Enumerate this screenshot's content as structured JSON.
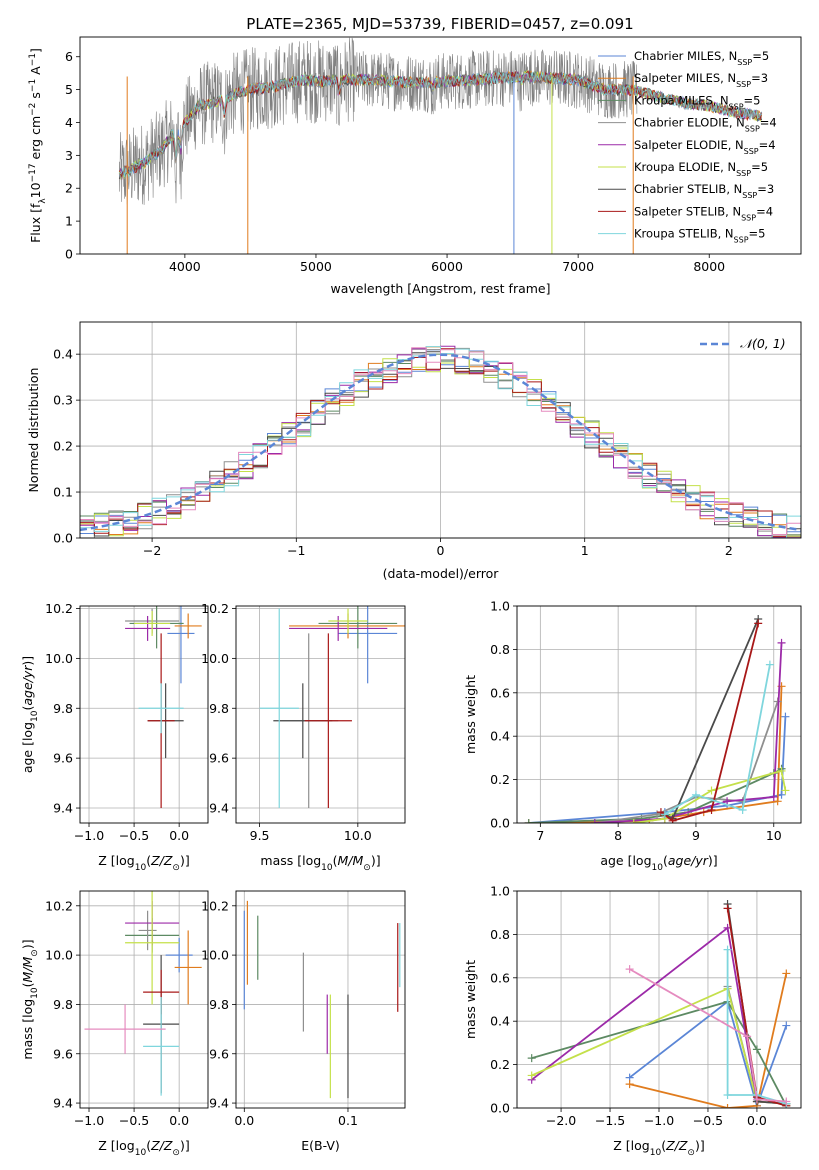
{
  "figure": {
    "title": "PLATE=2365, MJD=53739, FIBERID=0457, z=0.091"
  },
  "series_styles": [
    {
      "name": "Chabrier MILES",
      "nssp": "5",
      "color": "#5b86d6"
    },
    {
      "name": "Salpeter MILES",
      "nssp": "3",
      "color": "#e07c1e"
    },
    {
      "name": "Kroupa MILES",
      "nssp": "5",
      "color": "#5d8a63"
    },
    {
      "name": "Chabrier ELODIE",
      "nssp": "4",
      "color": "#8f8f8f"
    },
    {
      "name": "Salpeter ELODIE",
      "nssp": "4",
      "color": "#9c2aa8"
    },
    {
      "name": "Kroupa ELODIE",
      "nssp": "5",
      "color": "#c4e04a"
    },
    {
      "name": "Chabrier STELIB",
      "nssp": "3",
      "color": "#4a4a4a"
    },
    {
      "name": "Salpeter STELIB",
      "nssp": "4",
      "color": "#a81818"
    },
    {
      "name": "Kroupa STELIB",
      "nssp": "5",
      "color": "#7fd6dd"
    }
  ],
  "chart_data": [
    {
      "id": "spectrum",
      "type": "line",
      "xlabel": "wavelength [Angstrom, rest frame]",
      "ylabel": "Flux [f_λ 10^-17 erg cm^-2 s^-1 A^-1]",
      "xlim": [
        3200,
        8700
      ],
      "ylim": [
        0,
        6.6
      ],
      "xticks": [
        "4000",
        "5000",
        "6000",
        "7000",
        "8000"
      ],
      "yticks": [
        "0",
        "1",
        "2",
        "3",
        "4",
        "5",
        "6"
      ],
      "continuum": {
        "x": [
          3500,
          3600,
          3700,
          3800,
          3900,
          4000,
          4100,
          4200,
          4300,
          4400,
          4500,
          4600,
          4700,
          4800,
          4900,
          5000,
          5200,
          5400,
          5600,
          5800,
          6000,
          6200,
          6400,
          6600,
          6800,
          7000,
          7200,
          7400,
          7600,
          7800,
          8000,
          8200,
          8400
        ],
        "y": [
          2.4,
          2.6,
          2.8,
          3.1,
          3.6,
          4.0,
          4.5,
          4.6,
          4.7,
          4.9,
          5.0,
          5.05,
          5.1,
          5.2,
          5.3,
          5.25,
          5.3,
          5.3,
          5.25,
          5.2,
          5.25,
          5.3,
          5.35,
          5.4,
          5.35,
          5.3,
          5.0,
          5.0,
          4.8,
          4.6,
          4.5,
          4.3,
          4.2
        ]
      },
      "dips": [
        [
          3933,
          1.2
        ],
        [
          3968,
          1.0
        ],
        [
          4300,
          0.6
        ],
        [
          5175,
          0.5
        ],
        [
          5890,
          0.3
        ],
        [
          6563,
          0.2
        ]
      ],
      "spikes": [
        3560,
        4480,
        6510,
        6800,
        7420
      ]
    },
    {
      "id": "residuals",
      "type": "area",
      "xlabel": "(data-model)/error",
      "ylabel": "Normed distribution",
      "xlim": [
        -2.5,
        2.5
      ],
      "ylim": [
        0,
        0.47
      ],
      "xticks": [
        "−2",
        "−1",
        "0",
        "1",
        "2"
      ],
      "yticks": [
        "0.0",
        "0.1",
        "0.2",
        "0.3",
        "0.4"
      ],
      "legend": "𝒩(0, 1)",
      "bin_width": 0.1
    },
    {
      "id": "age_vs_Z",
      "type": "scatter",
      "xlabel": "Z [log10(Z/Z⊙)]",
      "ylabel": "age  [log10(age/yr)]",
      "xlim": [
        -1.1,
        0.32
      ],
      "ylim": [
        9.34,
        10.21
      ],
      "xticks": [
        "−1.0",
        "−0.5",
        "0.0"
      ],
      "yticks": [
        "9.4",
        "9.6",
        "9.8",
        "10.0",
        "10.2"
      ],
      "points": [
        {
          "x": 0.02,
          "y": 10.1,
          "xerr": 0.15,
          "yerr": 0.2
        },
        {
          "x": 0.1,
          "y": 10.13,
          "xerr": 0.15,
          "yerr": 0.05
        },
        {
          "x": -0.25,
          "y": 10.14,
          "xerr": 0.3,
          "yerr": 0.1
        },
        {
          "x": -0.3,
          "y": 10.15,
          "xerr": 0.3,
          "yerr": 0.05
        },
        {
          "x": -0.35,
          "y": 10.12,
          "xerr": 0.25,
          "yerr": 0.05
        },
        {
          "x": -0.3,
          "y": 10.14,
          "xerr": 0.2,
          "yerr": 0.05
        },
        {
          "x": -0.15,
          "y": 9.75,
          "xerr": 0.2,
          "yerr": 0.15
        },
        {
          "x": -0.2,
          "y": 9.75,
          "xerr": 0.15,
          "yerr": 0.35
        },
        {
          "x": -0.2,
          "y": 9.8,
          "xerr": 0.25,
          "yerr": 0.1
        }
      ]
    },
    {
      "id": "age_vs_mass",
      "type": "scatter",
      "xlabel": "mass [log10(M/M⊙)]",
      "ylabel": "",
      "xlim": [
        9.38,
        10.24
      ],
      "ylim": [
        9.34,
        10.21
      ],
      "xticks": [
        "9.5",
        "10.0"
      ],
      "yticks": [
        "9.4",
        "9.6",
        "9.8",
        "10.0",
        "10.2"
      ],
      "points": [
        {
          "x": 10.05,
          "y": 10.1,
          "xerr": 0.15,
          "yerr": 0.2
        },
        {
          "x": 9.95,
          "y": 10.13,
          "xerr": 0.3,
          "yerr": 0.05
        },
        {
          "x": 10.0,
          "y": 10.14,
          "xerr": 0.2,
          "yerr": 0.1
        },
        {
          "x": 9.75,
          "y": 9.75,
          "xerr": 0.15,
          "yerr": 0.35
        },
        {
          "x": 9.9,
          "y": 10.12,
          "xerr": 0.25,
          "yerr": 0.05
        },
        {
          "x": 9.95,
          "y": 10.15,
          "xerr": 0.1,
          "yerr": 0.05
        },
        {
          "x": 9.72,
          "y": 9.75,
          "xerr": 0.15,
          "yerr": 0.15
        },
        {
          "x": 9.85,
          "y": 9.75,
          "xerr": 0.12,
          "yerr": 0.35
        },
        {
          "x": 9.6,
          "y": 9.8,
          "xerr": 0.1,
          "yerr": 0.4
        }
      ]
    },
    {
      "id": "mass_weight_vs_age",
      "type": "line",
      "xlabel": "age  [log10(age/yr)]",
      "ylabel": "mass weight",
      "xlim": [
        6.7,
        10.35
      ],
      "ylim": [
        0,
        1.0
      ],
      "xticks": [
        "7",
        "8",
        "9",
        "10"
      ],
      "yticks": [
        "0.0",
        "0.2",
        "0.4",
        "0.6",
        "0.8",
        "1.0"
      ],
      "series": [
        {
          "x": [
            6.85,
            8.6,
            9.4,
            10.1,
            10.15
          ],
          "y": [
            0.0,
            0.05,
            0.08,
            0.13,
            0.49
          ]
        },
        {
          "x": [
            6.85,
            8.4,
            9.1,
            10.05,
            10.1
          ],
          "y": [
            0.0,
            0.01,
            0.05,
            0.1,
            0.63
          ]
        },
        {
          "x": [
            6.85,
            8.3,
            8.9,
            10.0,
            10.1
          ],
          "y": [
            0.0,
            0.02,
            0.05,
            0.23,
            0.25
          ]
        },
        {
          "x": [
            7.7,
            8.5,
            9.0,
            9.6,
            10.05
          ],
          "y": [
            0.0,
            0.04,
            0.12,
            0.1,
            0.56
          ]
        },
        {
          "x": [
            7.7,
            8.6,
            9.4,
            10.0,
            10.1
          ],
          "y": [
            0.0,
            0.02,
            0.1,
            0.12,
            0.83
          ]
        },
        {
          "x": [
            8.2,
            8.6,
            9.2,
            10.1,
            10.15
          ],
          "y": [
            0.0,
            0.02,
            0.15,
            0.24,
            0.15
          ]
        },
        {
          "x": [
            8.6,
            8.7,
            9.8
          ],
          "y": [
            0.04,
            0.02,
            0.94
          ]
        },
        {
          "x": [
            8.55,
            8.7,
            9.2,
            9.8
          ],
          "y": [
            0.05,
            0.01,
            0.06,
            0.92
          ]
        },
        {
          "x": [
            8.6,
            9.0,
            9.6,
            9.95
          ],
          "y": [
            0.04,
            0.13,
            0.06,
            0.73
          ]
        }
      ]
    },
    {
      "id": "mass_vs_Z",
      "type": "scatter",
      "xlabel": "Z [log10(Z/Z⊙)]",
      "ylabel": "mass [log10(M/M⊙)]",
      "xlim": [
        -1.1,
        0.32
      ],
      "ylim": [
        9.38,
        10.26
      ],
      "xticks": [
        "−1.0",
        "−0.5",
        "0.0"
      ],
      "yticks": [
        "9.4",
        "9.6",
        "9.8",
        "10.0",
        "10.2"
      ],
      "points": [
        {
          "x": 0.0,
          "y": 10.0,
          "xerr": 0.15,
          "yerr": 0.07
        },
        {
          "x": 0.1,
          "y": 9.95,
          "xerr": 0.15,
          "yerr": 0.15
        },
        {
          "x": -0.3,
          "y": 10.08,
          "xerr": 0.3,
          "yerr": 0.07
        },
        {
          "x": -0.35,
          "y": 10.1,
          "xerr": 0.1,
          "yerr": 0.08
        },
        {
          "x": -0.3,
          "y": 10.13,
          "xerr": 0.3,
          "yerr": 0.09
        },
        {
          "x": -0.3,
          "y": 10.05,
          "xerr": 0.3,
          "yerr": 0.25
        },
        {
          "x": -0.2,
          "y": 9.72,
          "xerr": 0.2,
          "yerr": 0.28
        },
        {
          "x": -0.2,
          "y": 9.85,
          "xerr": 0.2,
          "yerr": 0.09
        },
        {
          "x": -0.2,
          "y": 9.63,
          "xerr": 0.2,
          "yerr": 0.2
        },
        {
          "x": -0.6,
          "y": 9.7,
          "xerr": 0.45,
          "yerr": 0.1
        }
      ]
    },
    {
      "id": "mass_vs_ebv",
      "type": "scatter",
      "xlabel": "E(B-V)",
      "ylabel": "",
      "xlim": [
        -0.008,
        0.155
      ],
      "ylim": [
        9.38,
        10.26
      ],
      "xticks": [
        "0.0",
        "0.1"
      ],
      "yticks": [
        "9.4",
        "9.6",
        "9.8",
        "10.0",
        "10.2"
      ],
      "points": [
        {
          "x": 0.0,
          "y": 9.98,
          "yerr": 0.2
        },
        {
          "x": 0.003,
          "y": 10.05,
          "yerr": 0.17
        },
        {
          "x": 0.013,
          "y": 10.03,
          "yerr": 0.13
        },
        {
          "x": 0.057,
          "y": 9.85,
          "yerr": 0.16
        },
        {
          "x": 0.08,
          "y": 9.72,
          "yerr": 0.12
        },
        {
          "x": 0.083,
          "y": 9.63,
          "yerr": 0.21
        },
        {
          "x": 0.1,
          "y": 9.63,
          "yerr": 0.21
        },
        {
          "x": 0.148,
          "y": 9.95,
          "yerr": 0.18
        },
        {
          "x": 0.15,
          "y": 10.0,
          "yerr": 0.13
        }
      ]
    },
    {
      "id": "mass_weight_vs_Z",
      "type": "line",
      "xlabel": "Z [log10(Z/Z⊙)]",
      "ylabel": "mass weight",
      "xlim": [
        -2.45,
        0.45
      ],
      "ylim": [
        0,
        1.0
      ],
      "xticks": [
        "−2.0",
        "−1.5",
        "−1.0",
        "−0.5",
        "0.0"
      ],
      "yticks": [
        "0.0",
        "0.2",
        "0.4",
        "0.6",
        "0.8",
        "1.0"
      ],
      "series": [
        {
          "x": [
            -1.3,
            -0.3,
            0.0,
            0.3
          ],
          "y": [
            0.14,
            0.49,
            0.01,
            0.38
          ]
        },
        {
          "x": [
            -1.3,
            -0.3,
            0.0,
            0.3
          ],
          "y": [
            0.11,
            0.0,
            0.01,
            0.62
          ]
        },
        {
          "x": [
            -2.3,
            -0.3,
            0.0,
            0.3
          ],
          "y": [
            0.23,
            0.49,
            0.27,
            0.01
          ]
        },
        {
          "x": [
            -0.3,
            0.0
          ],
          "y": [
            0.56,
            0.03
          ]
        },
        {
          "x": [
            -2.3,
            -0.3,
            0.0,
            0.3
          ],
          "y": [
            0.13,
            0.83,
            0.03,
            0.02
          ]
        },
        {
          "x": [
            -2.3,
            -0.3,
            0.0,
            0.3
          ],
          "y": [
            0.15,
            0.55,
            0.03,
            0.02
          ]
        },
        {
          "x": [
            -0.3,
            0.0,
            0.3
          ],
          "y": [
            0.94,
            0.03,
            0.02
          ]
        },
        {
          "x": [
            -0.3,
            0.0,
            0.3
          ],
          "y": [
            0.92,
            0.05,
            0.01
          ]
        },
        {
          "x": [
            -0.3,
            -0.3,
            0.0,
            0.3
          ],
          "y": [
            0.73,
            0.06,
            0.06,
            0.02
          ]
        },
        {
          "x": [
            -1.3,
            -0.1,
            0.0,
            0.3
          ],
          "y": [
            0.64,
            0.33,
            0.04,
            0.03
          ]
        }
      ]
    }
  ]
}
